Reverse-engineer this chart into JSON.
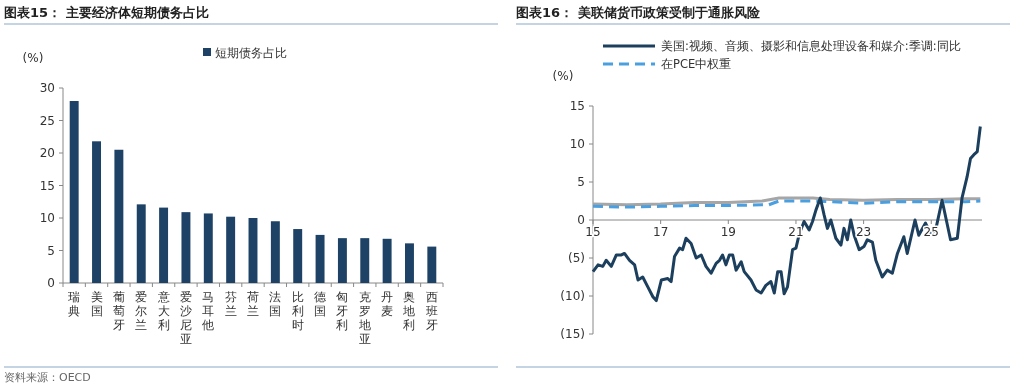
{
  "chart_data": [
    {
      "type": "bar",
      "title": "图表15：  主要经济体短期债务占比",
      "ylabel": "(%)",
      "categories": [
        "瑞典",
        "美国",
        "葡萄牙",
        "爱尔兰",
        "意大利",
        "爱沙尼亚",
        "马耳他",
        "芬兰",
        "荷兰",
        "法国",
        "比利时",
        "德国",
        "匈牙利",
        "克罗地亚",
        "丹麦",
        "奥地利",
        "西班牙"
      ],
      "series": [
        {
          "name": "短期债务占比",
          "color": "#1d4266",
          "values": [
            28.0,
            21.8,
            20.5,
            12.1,
            11.6,
            10.9,
            10.7,
            10.2,
            10.0,
            9.5,
            8.3,
            7.4,
            6.9,
            6.9,
            6.8,
            6.1,
            5.6
          ]
        }
      ],
      "ylim": [
        0,
        30
      ],
      "yticks": [
        0,
        5,
        10,
        15,
        20,
        25,
        30
      ],
      "legend": "top",
      "annotations": [
        "资料来源：OECD"
      ]
    },
    {
      "type": "line",
      "title": "图表16：  美联储货币政策受制于通胀风险",
      "ylabel": "(%)",
      "xlim": [
        15,
        26.5
      ],
      "xticks": [
        15,
        17,
        19,
        21,
        23,
        25
      ],
      "ylim": [
        -15,
        15
      ],
      "yticks": [
        {
          "value": -15,
          "label": "(15)"
        },
        {
          "value": -10,
          "label": "(10)"
        },
        {
          "value": -5,
          "label": "(5)"
        },
        0,
        5,
        10,
        15
      ],
      "legend": "top",
      "series": [
        {
          "name": "美国:视频、音频、摄影和信息处理设备和媒介:季调:同比",
          "color": "#1c3f5e",
          "line_style": "solid",
          "x": [
            15.0,
            15.15,
            15.29,
            15.39,
            15.54,
            15.69,
            15.84,
            15.93,
            16.08,
            16.23,
            16.33,
            16.47,
            16.62,
            16.77,
            16.87,
            17.02,
            17.21,
            17.31,
            17.41,
            17.56,
            17.65,
            17.75,
            17.9,
            18.05,
            18.2,
            18.34,
            18.49,
            18.64,
            18.74,
            18.83,
            18.93,
            19.03,
            19.13,
            19.23,
            19.38,
            19.47,
            19.67,
            19.82,
            19.97,
            20.11,
            20.26,
            20.36,
            20.46,
            20.56,
            20.65,
            20.75,
            20.9,
            21.0,
            21.1,
            21.24,
            21.39,
            21.49,
            21.59,
            21.72,
            21.83,
            21.93,
            22.03,
            22.18,
            22.33,
            22.42,
            22.52,
            22.62,
            22.72,
            22.87,
            23.01,
            23.11,
            23.26,
            23.36,
            23.55,
            23.7,
            23.85,
            24.0,
            24.19,
            24.29,
            24.52,
            24.63,
            24.83,
            24.98,
            25.13,
            25.32,
            25.57,
            25.77,
            25.91,
            26.06,
            26.16,
            26.26,
            26.36,
            26.45
          ],
          "values": [
            -6.8,
            -5.9,
            -6.1,
            -5.3,
            -6.1,
            -4.6,
            -4.6,
            -4.4,
            -5.3,
            -5.9,
            -7.9,
            -7.5,
            -8.8,
            -10.1,
            -10.6,
            -7.9,
            -7.7,
            -8.1,
            -4.8,
            -3.7,
            -3.9,
            -2.4,
            -3.1,
            -5.0,
            -4.6,
            -6.1,
            -7.0,
            -5.7,
            -5.3,
            -4.6,
            -5.9,
            -4.6,
            -4.6,
            -6.6,
            -5.5,
            -6.8,
            -7.9,
            -9.2,
            -9.6,
            -8.6,
            -8.1,
            -9.6,
            -6.8,
            -6.8,
            -9.7,
            -8.8,
            -3.9,
            -3.7,
            -1.8,
            -0.2,
            -1.3,
            -0.2,
            1.3,
            2.9,
            0.7,
            -1.1,
            0,
            -2.4,
            -3.3,
            -1.1,
            -2.6,
            0,
            -2.0,
            -3.9,
            -3.5,
            -2.6,
            -2.9,
            -5.3,
            -7.5,
            -6.6,
            -7.0,
            -4.4,
            -2.2,
            -4.4,
            0,
            -2.0,
            -0.4,
            -1.8,
            -1.3,
            2.6,
            -2.6,
            -2.4,
            2.9,
            5.7,
            8.1,
            8.6,
            9.0,
            12.3
          ]
        },
        {
          "name": "在PCE中权重",
          "color": "#4a9fe0",
          "line_style": "dashed",
          "x": [
            15,
            16,
            17,
            18,
            19,
            20,
            20.2,
            20.5,
            21.5,
            22,
            23,
            24,
            25,
            26,
            26.45
          ],
          "values": [
            1.8,
            1.7,
            1.8,
            1.9,
            1.9,
            2.0,
            2.0,
            2.5,
            2.5,
            2.4,
            2.2,
            2.4,
            2.4,
            2.4,
            2.5
          ]
        },
        {
          "color": "#a6a6a6",
          "line_style": "solid",
          "x": [
            15,
            16,
            17,
            18,
            19,
            20,
            20.5,
            21.5,
            22,
            23,
            24,
            25,
            26,
            26.45
          ],
          "values": [
            2.1,
            2.0,
            2.1,
            2.3,
            2.3,
            2.5,
            2.9,
            2.9,
            2.7,
            2.6,
            2.7,
            2.7,
            2.8,
            2.8
          ]
        }
      ]
    }
  ]
}
